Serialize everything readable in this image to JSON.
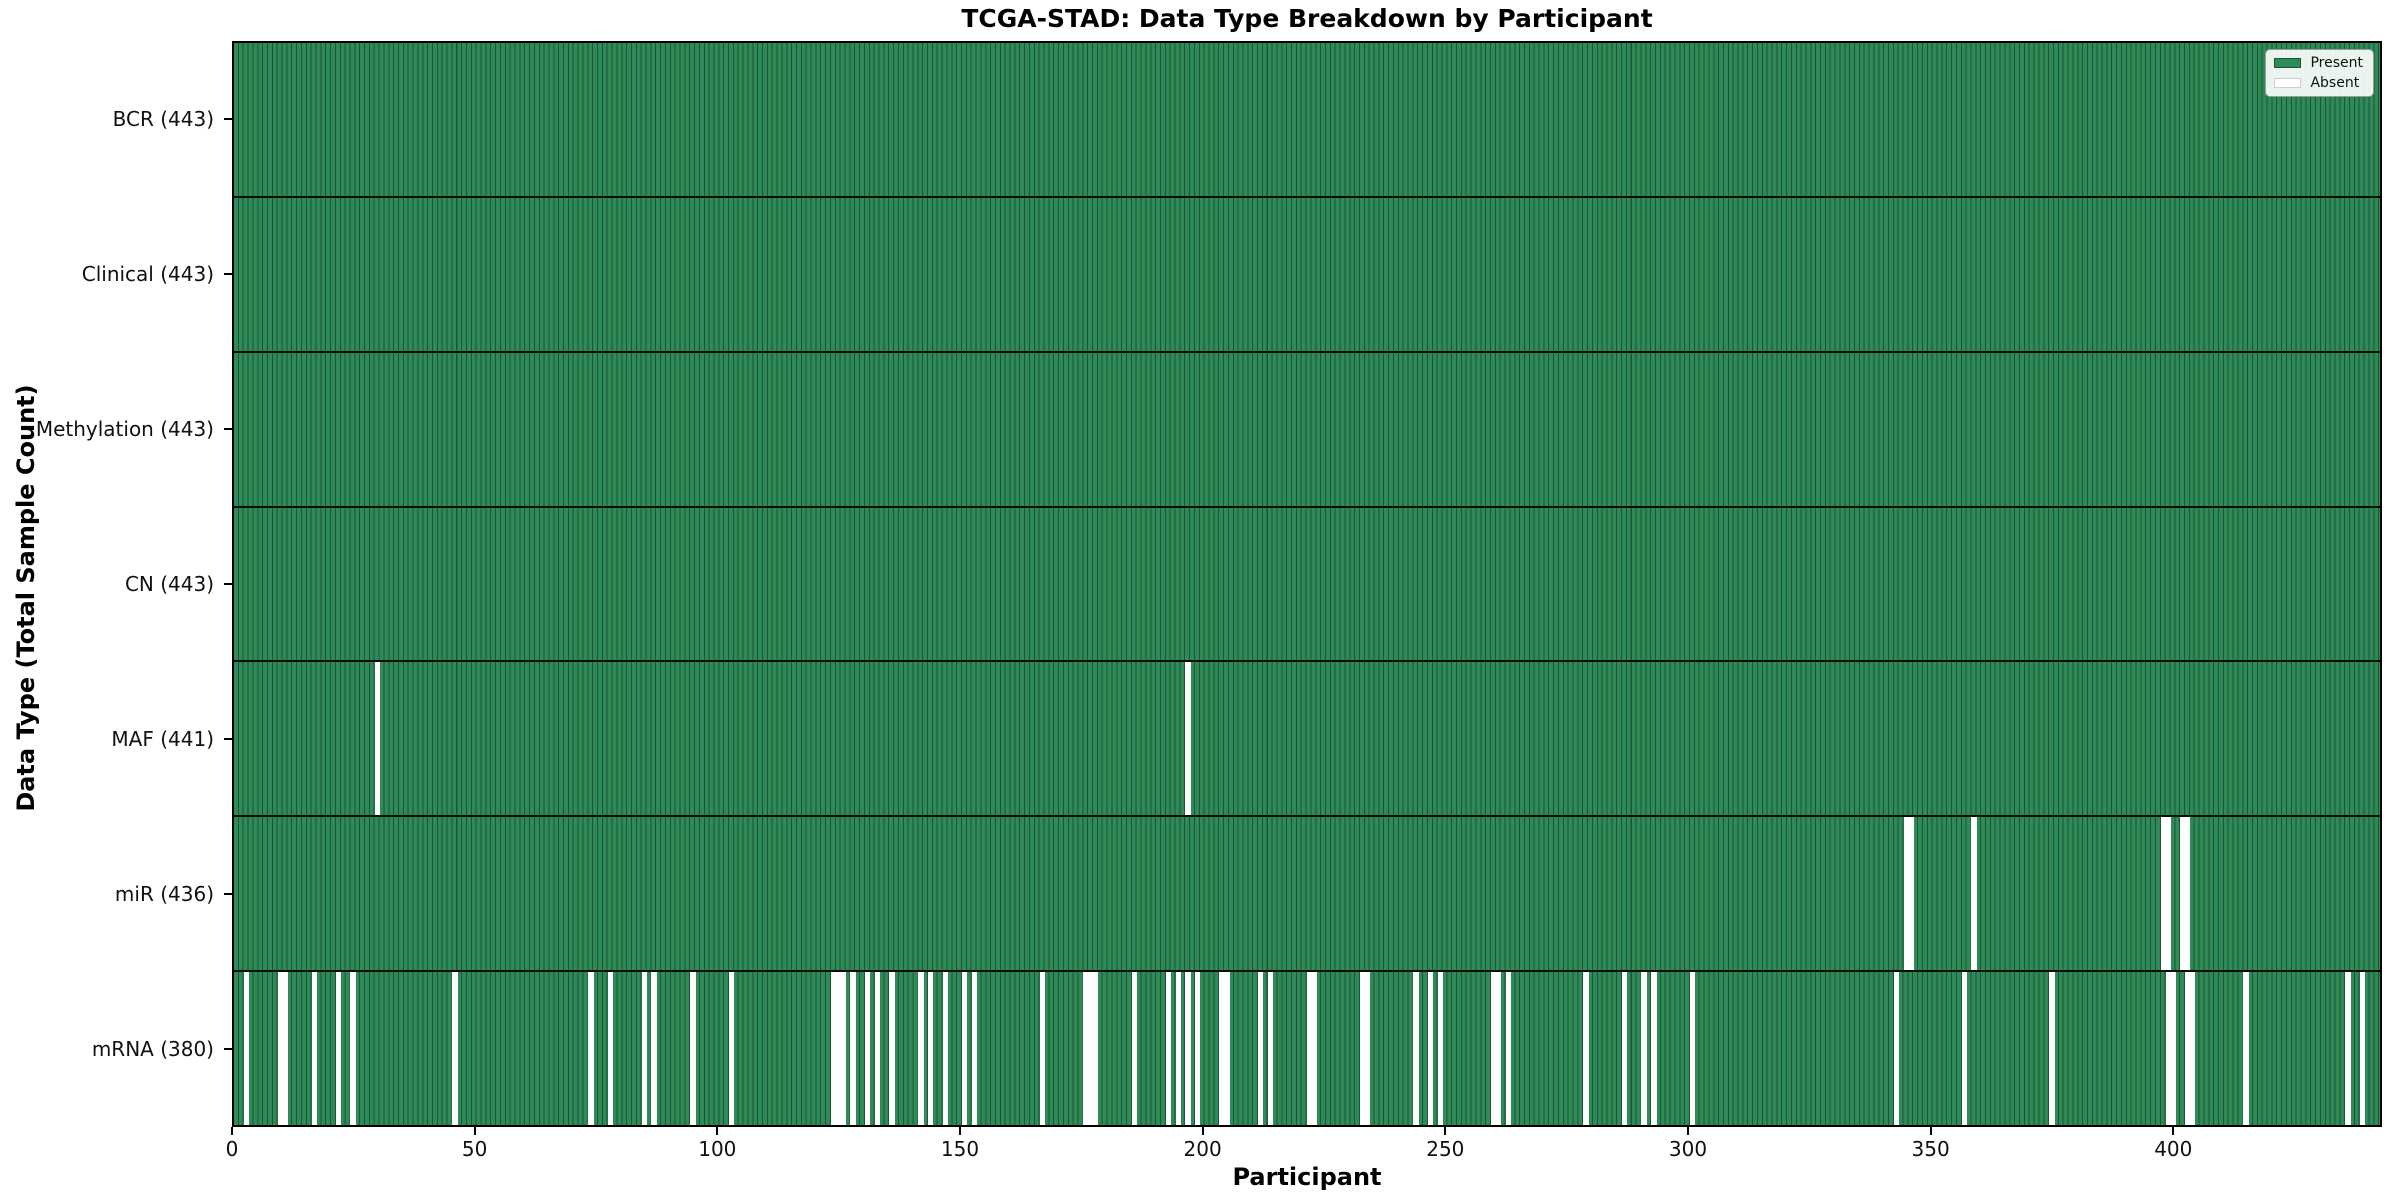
{
  "title": "TCGA-STAD: Data Type Breakdown by Participant",
  "chart_data": {
    "type": "heatmap",
    "title": "TCGA-STAD: Data Type Breakdown by Participant",
    "xlabel": "Participant",
    "ylabel": "Data Type (Total Sample Count)",
    "x_ticks": [
      0,
      50,
      100,
      150,
      200,
      250,
      300,
      350,
      400
    ],
    "x_range": [
      0,
      443
    ],
    "n_participants": 443,
    "grid": false,
    "legend_position": "upper right",
    "legend": [
      {
        "label": "Present",
        "color": "#2E8B57"
      },
      {
        "label": "Absent",
        "color": "#FFFFFF"
      }
    ],
    "colors": {
      "present": "#2E8B57",
      "absent": "#FFFFFF",
      "cell_edge": "#1d5636",
      "spine": "#000000"
    },
    "rows": [
      {
        "key": "bcr",
        "label": "BCR (443)",
        "data_type": "BCR",
        "count": 443,
        "missing_participants": []
      },
      {
        "key": "clinical",
        "label": "Clinical (443)",
        "data_type": "Clinical",
        "count": 443,
        "missing_participants": []
      },
      {
        "key": "methylation",
        "label": "Methylation (443)",
        "data_type": "Methylation",
        "count": 443,
        "missing_participants": []
      },
      {
        "key": "cn",
        "label": "CN (443)",
        "data_type": "CN",
        "count": 443,
        "missing_participants": []
      },
      {
        "key": "maf",
        "label": "MAF (441)",
        "data_type": "MAF",
        "count": 441,
        "missing_participants": [
          29,
          196
        ]
      },
      {
        "key": "mir",
        "label": "miR (436)",
        "data_type": "miR",
        "count": 436,
        "missing_participants": [
          344,
          345,
          358,
          397,
          398,
          401,
          402
        ]
      },
      {
        "key": "mrna",
        "label": "mRNA (380)",
        "data_type": "mRNA",
        "count": 380,
        "missing_participants": [
          2,
          9,
          10,
          16,
          21,
          24,
          45,
          73,
          77,
          84,
          86,
          94,
          102,
          123,
          124,
          125,
          127,
          130,
          132,
          135,
          141,
          143,
          146,
          150,
          152,
          166,
          175,
          176,
          177,
          185,
          192,
          194,
          196,
          198,
          203,
          204,
          211,
          213,
          221,
          222,
          232,
          233,
          243,
          246,
          248,
          259,
          260,
          262,
          278,
          286,
          290,
          292,
          300,
          342,
          356,
          374,
          398,
          399,
          402,
          403,
          414,
          435,
          438
        ]
      }
    ]
  }
}
